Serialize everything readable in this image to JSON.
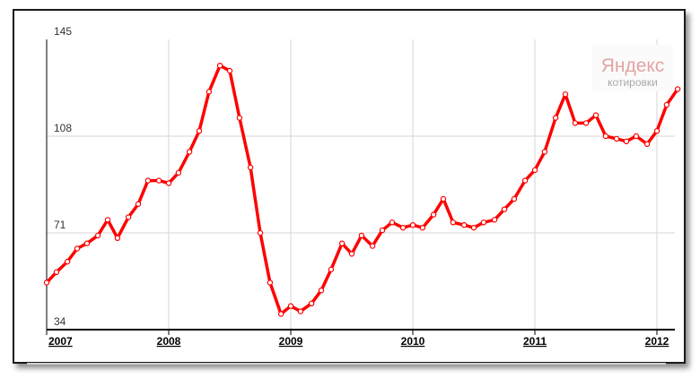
{
  "watermark": {
    "brand": "Яндекс",
    "subtitle": "котировки"
  },
  "colors": {
    "line": "#ff0000",
    "marker_fill": "#ffffff",
    "grid": "#d6d6d6",
    "axis": "#000000"
  },
  "chart_data": {
    "type": "line",
    "title": "",
    "xlabel": "",
    "ylabel": "",
    "xlim": [
      2007.0,
      2012.17
    ],
    "ylim": [
      34,
      145
    ],
    "grid": true,
    "y_ticks": [
      {
        "value": 34,
        "label": "34"
      },
      {
        "value": 71,
        "label": "71"
      },
      {
        "value": 108,
        "label": "108"
      },
      {
        "value": 145,
        "label": "145"
      }
    ],
    "x_ticks": [
      {
        "value": 2007,
        "label": "2007"
      },
      {
        "value": 2008,
        "label": "2008"
      },
      {
        "value": 2009,
        "label": "2009"
      },
      {
        "value": 2010,
        "label": "2010"
      },
      {
        "value": 2011,
        "label": "2011"
      },
      {
        "value": 2012,
        "label": "2012"
      }
    ],
    "series": [
      {
        "points": [
          [
            2007.0,
            52
          ],
          [
            2007.08,
            56
          ],
          [
            2007.17,
            60
          ],
          [
            2007.25,
            65
          ],
          [
            2007.33,
            67
          ],
          [
            2007.42,
            70
          ],
          [
            2007.5,
            76
          ],
          [
            2007.58,
            69
          ],
          [
            2007.67,
            77
          ],
          [
            2007.75,
            82
          ],
          [
            2007.83,
            91
          ],
          [
            2007.92,
            91
          ],
          [
            2008.0,
            90
          ],
          [
            2008.08,
            94
          ],
          [
            2008.17,
            102
          ],
          [
            2008.25,
            110
          ],
          [
            2008.33,
            125
          ],
          [
            2008.42,
            135
          ],
          [
            2008.5,
            133
          ],
          [
            2008.58,
            115
          ],
          [
            2008.67,
            96
          ],
          [
            2008.75,
            71
          ],
          [
            2008.83,
            52
          ],
          [
            2008.92,
            40
          ],
          [
            2009.0,
            43
          ],
          [
            2009.08,
            41
          ],
          [
            2009.17,
            44
          ],
          [
            2009.25,
            49
          ],
          [
            2009.33,
            57
          ],
          [
            2009.42,
            67
          ],
          [
            2009.5,
            63
          ],
          [
            2009.58,
            70
          ],
          [
            2009.67,
            66
          ],
          [
            2009.75,
            72
          ],
          [
            2009.83,
            75
          ],
          [
            2009.92,
            73
          ],
          [
            2010.0,
            74
          ],
          [
            2010.08,
            73
          ],
          [
            2010.17,
            78
          ],
          [
            2010.25,
            84
          ],
          [
            2010.33,
            75
          ],
          [
            2010.42,
            74
          ],
          [
            2010.5,
            73
          ],
          [
            2010.58,
            75
          ],
          [
            2010.67,
            76
          ],
          [
            2010.75,
            80
          ],
          [
            2010.83,
            84
          ],
          [
            2010.92,
            91
          ],
          [
            2011.0,
            95
          ],
          [
            2011.08,
            102
          ],
          [
            2011.17,
            115
          ],
          [
            2011.25,
            124
          ],
          [
            2011.33,
            113
          ],
          [
            2011.42,
            113
          ],
          [
            2011.5,
            116
          ],
          [
            2011.58,
            108
          ],
          [
            2011.67,
            107
          ],
          [
            2011.75,
            106
          ],
          [
            2011.83,
            108
          ],
          [
            2011.92,
            105
          ],
          [
            2012.0,
            110
          ],
          [
            2012.08,
            120
          ],
          [
            2012.17,
            126
          ]
        ]
      }
    ]
  }
}
